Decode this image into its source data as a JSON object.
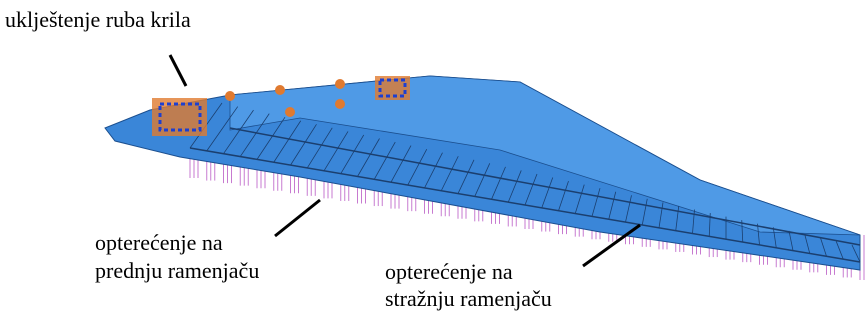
{
  "labels": [
    {
      "lines": [
        "uklještenje ruba krila"
      ]
    },
    {
      "lines": [
        "opterećenje na",
        "prednju ramenjaču"
      ]
    },
    {
      "lines": [
        "opterećenje na",
        "stražnju ramenjaču"
      ]
    }
  ]
}
